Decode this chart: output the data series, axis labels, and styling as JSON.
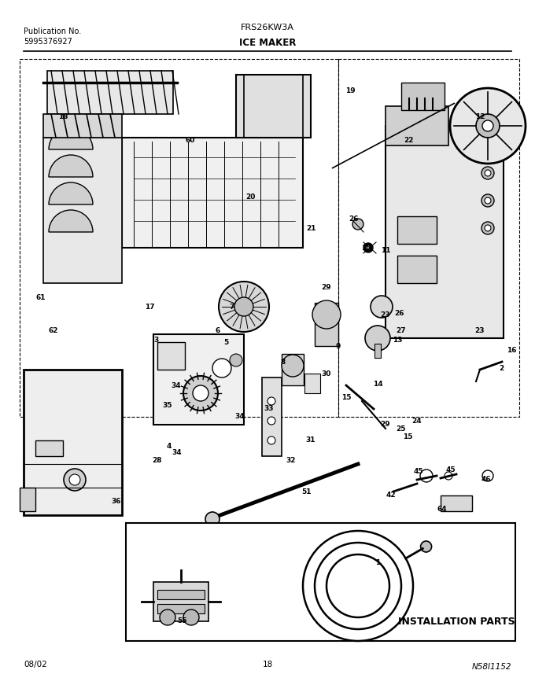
{
  "title_model": "FRS26KW3A",
  "title_section": "ICE MAKER",
  "pub_no_label": "Publication No.",
  "pub_no": "5995376927",
  "footer_left": "08/02",
  "footer_center": "18",
  "footer_right": "N58I1152",
  "install_parts_label": "INSTALLATION PARTS",
  "bg_color": "#ffffff",
  "text_color": "#000000",
  "figsize": [
    6.8,
    8.71
  ],
  "dpi": 100
}
